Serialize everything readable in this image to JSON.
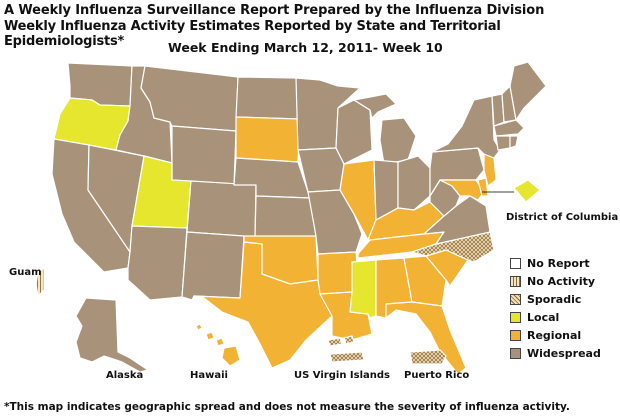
{
  "header": {
    "title_line1": "A Weekly Influenza Surveillance Report Prepared by the Influenza Division",
    "title_line2": "Weekly Influenza Activity Estimates Reported by State and Territorial Epidemiologists*",
    "week_line": "Week Ending March 12, 2011- Week 10"
  },
  "footnote": "*This map indicates geographic spread and does not measure the severity of influenza activity.",
  "colors": {
    "no_report": "#ffffff",
    "no_activity": "#f5e6c0",
    "sporadic": "#f0dcb4",
    "local": "#e6e62e",
    "regional": "#f2b233",
    "widespread": "#a8927a",
    "border": "#ffffff",
    "outline": "#555555"
  },
  "labels": {
    "guam": "Guam",
    "alaska": "Alaska",
    "hawaii": "Hawaii",
    "usvi": "US Virgin Islands",
    "pr": "Puerto Rico",
    "dc": "District of Columbia"
  },
  "legend": [
    {
      "key": "no_report",
      "label": "No Report"
    },
    {
      "key": "no_activity",
      "label": "No Activity"
    },
    {
      "key": "sporadic",
      "label": "Sporadic"
    },
    {
      "key": "local",
      "label": "Local"
    },
    {
      "key": "regional",
      "label": "Regional"
    },
    {
      "key": "widespread",
      "label": "Widespread"
    }
  ],
  "activity_by_state": {
    "WA": "widespread",
    "OR": "local",
    "CA": "widespread",
    "NV": "widespread",
    "ID": "widespread",
    "MT": "widespread",
    "WY": "widespread",
    "UT": "local",
    "AZ": "widespread",
    "CO": "widespread",
    "NM": "widespread",
    "ND": "widespread",
    "SD": "regional",
    "NE": "widespread",
    "KS": "widespread",
    "OK": "regional",
    "TX": "regional",
    "MN": "widespread",
    "IA": "widespread",
    "MO": "widespread",
    "AR": "regional",
    "LA": "regional",
    "WI": "widespread",
    "IL": "regional",
    "MI": "widespread",
    "IN": "widespread",
    "OH": "widespread",
    "KY": "regional",
    "TN": "regional",
    "MS": "local",
    "AL": "regional",
    "GA": "regional",
    "FL": "regional",
    "SC": "regional",
    "NC": "sporadic",
    "VA": "widespread",
    "WV": "widespread",
    "PA": "widespread",
    "NY": "widespread",
    "VT": "widespread",
    "NH": "widespread",
    "ME": "widespread",
    "MA": "widespread",
    "RI": "widespread",
    "CT": "widespread",
    "NJ": "regional",
    "DE": "regional",
    "MD": "regional",
    "DC": "local",
    "AK": "widespread",
    "HI": "regional",
    "GU": "no_activity",
    "VI": "sporadic",
    "PR": "sporadic"
  }
}
